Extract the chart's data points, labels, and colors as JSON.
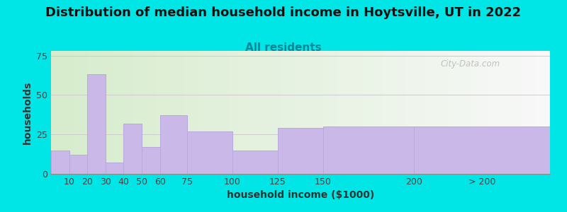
{
  "title": "Distribution of median household income in Hoytsville, UT in 2022",
  "subtitle": "All residents",
  "xlabel": "household income ($1000)",
  "ylabel": "households",
  "bar_labels": [
    "10",
    "20",
    "30",
    "40",
    "50",
    "60",
    "75",
    "100",
    "125",
    "150",
    "200",
    "> 200"
  ],
  "bar_heights": [
    15,
    12,
    63,
    7,
    32,
    17,
    37,
    27,
    15,
    29,
    30,
    30
  ],
  "bar_lefts": [
    0,
    10,
    20,
    30,
    40,
    50,
    60,
    75,
    100,
    125,
    150,
    200
  ],
  "bar_widths": [
    10,
    10,
    10,
    10,
    10,
    10,
    15,
    25,
    25,
    25,
    50,
    75
  ],
  "bar_color": "#c9b8e8",
  "bar_edge_color": "#b8a8dc",
  "ylim": [
    0,
    78
  ],
  "yticks": [
    0,
    25,
    50,
    75
  ],
  "xlim": [
    0,
    275
  ],
  "background_color": "#00e5e5",
  "plot_bg_left": "#d6eccc",
  "plot_bg_right": "#f8f8f8",
  "title_fontsize": 13,
  "subtitle_fontsize": 11,
  "subtitle_color": "#008899",
  "axis_label_fontsize": 10,
  "tick_fontsize": 9,
  "watermark": "City-Data.com",
  "xtick_positions": [
    10,
    20,
    30,
    40,
    50,
    60,
    75,
    100,
    125,
    150,
    200,
    237.5
  ],
  "xtick_labels": [
    "10",
    "20",
    "30",
    "40",
    "50",
    "60",
    "75",
    "100",
    "125",
    "150",
    "200",
    "> 200"
  ]
}
